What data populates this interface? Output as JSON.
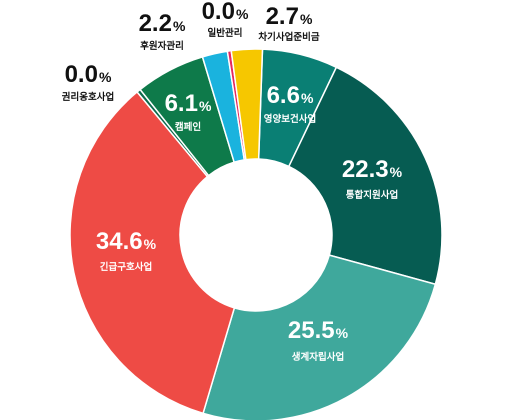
{
  "chart_data": {
    "type": "pie",
    "donut": true,
    "unit": "%",
    "categories": [
      "영양보건사업",
      "통합지원사업",
      "생계자립사업",
      "긴급구호사업",
      "권리옹호사업",
      "캠페인",
      "후원자관리",
      "일반관리",
      "차기사업준비금"
    ],
    "values": [
      6.6,
      22.3,
      25.5,
      34.6,
      0.0,
      6.1,
      2.2,
      0.0,
      2.7
    ],
    "value_labels": [
      "6.6",
      "22.3",
      "25.5",
      "34.6",
      "0.0",
      "6.1",
      "2.2",
      "0.0",
      "2.7"
    ],
    "colors": [
      "#0a7f74",
      "#065c52",
      "#3fa89c",
      "#ee4b45",
      "#0e6b4c",
      "#0e7a4a",
      "#1ab3de",
      "#e6275f",
      "#f6c700"
    ],
    "legend": "none"
  }
}
